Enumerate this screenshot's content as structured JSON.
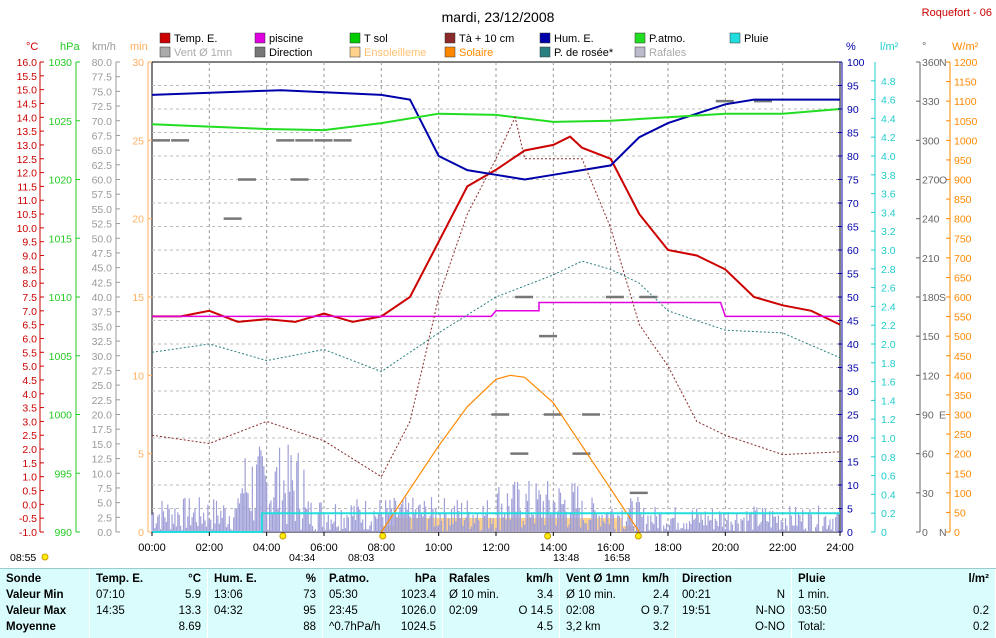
{
  "title": "mardi, 23/12/2008",
  "station": "Roquefort - 06",
  "legend": [
    {
      "label": "Temp. E.",
      "color": "#cc0000"
    },
    {
      "label": "piscine",
      "color": "#e000e0"
    },
    {
      "label": "T sol",
      "color": "#00cc00"
    },
    {
      "label": "Tà + 10 cm",
      "color": "#8b2a2a"
    },
    {
      "label": "Hum. E.",
      "color": "#0000aa"
    },
    {
      "label": "P.atmo.",
      "color": "#22dd22"
    },
    {
      "label": "Pluie",
      "color": "#22dddd"
    },
    {
      "label": "Vent Ø 1mn",
      "color": "#aaaaaa"
    },
    {
      "label": "Direction",
      "color": "#777777"
    },
    {
      "label": "Ensoleilleme",
      "color": "#ffd28c"
    },
    {
      "label": "Solaire",
      "color": "#ff8800"
    },
    {
      "label": "P. de rosée*",
      "color": "#2a8080"
    },
    {
      "label": "Rafales",
      "color": "#bbbbcc"
    }
  ],
  "axes": {
    "temp": {
      "unit": "°C",
      "ticks": [
        "16.0",
        "15.5",
        "15.0",
        "14.5",
        "14.0",
        "13.5",
        "13.0",
        "12.5",
        "12.0",
        "11.5",
        "11.0",
        "10.5",
        "10.0",
        "9.5",
        "9.0",
        "8.5",
        "8.0",
        "7.5",
        "7.0",
        "6.5",
        "6.0",
        "5.5",
        "5.0",
        "4.5",
        "4.0",
        "3.5",
        "3.0",
        "2.5",
        "2.0",
        "1.5",
        "1.0",
        "0.5",
        "0.0",
        "-0.5",
        "-1.0"
      ]
    },
    "pressure": {
      "unit": "hPa",
      "ticks": [
        "1030",
        "1025",
        "1020",
        "1015",
        "1010",
        "1005",
        "1000",
        "995",
        "990"
      ]
    },
    "wind": {
      "unit": "km/h",
      "ticks": [
        "80.0",
        "77.5",
        "75.0",
        "72.5",
        "70.0",
        "67.5",
        "65.0",
        "62.5",
        "60.0",
        "57.5",
        "55.0",
        "52.5",
        "50.0",
        "47.5",
        "45.0",
        "42.5",
        "40.0",
        "37.5",
        "35.0",
        "32.5",
        "30.0",
        "27.5",
        "25.0",
        "22.5",
        "20.0",
        "17.5",
        "15.0",
        "12.5",
        "10.0",
        "7.5",
        "5.0",
        "2.5",
        "0.0"
      ]
    },
    "sun": {
      "unit": "min",
      "ticks": [
        "30",
        "25",
        "20",
        "15",
        "10",
        "5",
        "0"
      ]
    },
    "humidity": {
      "unit": "%",
      "ticks": [
        "100",
        "95",
        "90",
        "85",
        "80",
        "75",
        "70",
        "65",
        "60",
        "55",
        "50",
        "45",
        "40",
        "35",
        "30",
        "25",
        "20",
        "15",
        "10",
        "5",
        "0"
      ]
    },
    "rain": {
      "unit": "l/m²",
      "ticks": [
        "4.8",
        "4.6",
        "4.4",
        "4.2",
        "4.0",
        "3.8",
        "3.6",
        "3.4",
        "3.2",
        "3.0",
        "2.8",
        "2.6",
        "2.4",
        "2.2",
        "2.0",
        "1.8",
        "1.6",
        "1.4",
        "1.2",
        "1.0",
        "0.8",
        "0.6",
        "0.4",
        "0.2",
        "0"
      ]
    },
    "direction": {
      "unit": "°",
      "ticks": [
        "360",
        "330",
        "300",
        "270",
        "240",
        "210",
        "180",
        "150",
        "120",
        "90",
        "60",
        "30",
        "0"
      ],
      "cardinals": {
        "360": "N",
        "270": "O",
        "180": "S",
        "90": "E",
        "0": "N"
      }
    },
    "solar": {
      "unit": "W/m²",
      "ticks": [
        "1200",
        "1150",
        "1100",
        "1050",
        "1000",
        "950",
        "900",
        "850",
        "800",
        "750",
        "700",
        "650",
        "600",
        "550",
        "500",
        "450",
        "400",
        "350",
        "300",
        "250",
        "200",
        "150",
        "100",
        "50",
        "0"
      ]
    },
    "time": {
      "ticks": [
        "00:00",
        "02:00",
        "04:00",
        "06:00",
        "08:00",
        "10:00",
        "12:00",
        "14:00",
        "16:00",
        "18:00",
        "20:00",
        "22:00",
        "24:00"
      ]
    }
  },
  "markers": {
    "sunrise_label": "08:55",
    "moon_left": "04:34",
    "sun_up": "08:03",
    "moon_mid": "13:48",
    "sun_down": "16:58"
  },
  "chart_data": {
    "type": "line",
    "x_range": [
      "00:00",
      "24:00"
    ],
    "series": [
      {
        "name": "Temp. E.",
        "unit": "°C",
        "points": [
          [
            "00:00",
            6.8
          ],
          [
            "01:00",
            6.8
          ],
          [
            "02:00",
            7.0
          ],
          [
            "03:00",
            6.6
          ],
          [
            "04:00",
            6.7
          ],
          [
            "05:00",
            6.6
          ],
          [
            "06:00",
            6.9
          ],
          [
            "07:00",
            6.6
          ],
          [
            "08:00",
            6.8
          ],
          [
            "09:00",
            7.5
          ],
          [
            "10:00",
            9.5
          ],
          [
            "11:00",
            11.5
          ],
          [
            "12:00",
            12.1
          ],
          [
            "13:00",
            12.8
          ],
          [
            "14:00",
            13.0
          ],
          [
            "14:35",
            13.3
          ],
          [
            "15:00",
            12.9
          ],
          [
            "16:00",
            12.5
          ],
          [
            "17:00",
            10.5
          ],
          [
            "18:00",
            9.2
          ],
          [
            "19:00",
            9.0
          ],
          [
            "20:00",
            8.5
          ],
          [
            "21:00",
            7.5
          ],
          [
            "22:00",
            7.2
          ],
          [
            "23:00",
            7.0
          ],
          [
            "24:00",
            6.5
          ]
        ]
      },
      {
        "name": "piscine",
        "unit": "°C",
        "points": [
          [
            "00:00",
            6.8
          ],
          [
            "11:50",
            6.8
          ],
          [
            "12:00",
            7.0
          ],
          [
            "13:30",
            7.0
          ],
          [
            "13:30",
            7.3
          ],
          [
            "19:50",
            7.3
          ],
          [
            "20:00",
            6.8
          ],
          [
            "24:00",
            6.8
          ]
        ]
      },
      {
        "name": "Hum. E.",
        "unit": "%",
        "points": [
          [
            "00:00",
            93
          ],
          [
            "04:30",
            94
          ],
          [
            "08:00",
            93
          ],
          [
            "09:00",
            92
          ],
          [
            "10:00",
            80
          ],
          [
            "11:00",
            77
          ],
          [
            "12:00",
            76
          ],
          [
            "13:00",
            75
          ],
          [
            "14:00",
            76
          ],
          [
            "15:00",
            77
          ],
          [
            "16:00",
            78
          ],
          [
            "17:00",
            84
          ],
          [
            "18:00",
            87
          ],
          [
            "19:00",
            89
          ],
          [
            "20:00",
            91
          ],
          [
            "21:00",
            92
          ],
          [
            "22:00",
            92
          ],
          [
            "24:00",
            92
          ]
        ]
      },
      {
        "name": "P.atmo.",
        "unit": "hPa",
        "points": [
          [
            "00:00",
            1024.7
          ],
          [
            "04:00",
            1024.3
          ],
          [
            "06:00",
            1024.2
          ],
          [
            "08:00",
            1024.8
          ],
          [
            "10:00",
            1025.6
          ],
          [
            "12:00",
            1025.5
          ],
          [
            "14:00",
            1024.9
          ],
          [
            "16:00",
            1025.0
          ],
          [
            "18:00",
            1025.3
          ],
          [
            "20:00",
            1025.6
          ],
          [
            "22:00",
            1025.6
          ],
          [
            "24:00",
            1026.0
          ]
        ]
      },
      {
        "name": "Tà + 10 cm",
        "unit": "°C",
        "points": [
          [
            "00:00",
            2.5
          ],
          [
            "02:00",
            2.2
          ],
          [
            "04:00",
            3.0
          ],
          [
            "06:00",
            2.3
          ],
          [
            "08:00",
            1.0
          ],
          [
            "09:00",
            3.0
          ],
          [
            "10:00",
            7.5
          ],
          [
            "11:00",
            10.5
          ],
          [
            "12:00",
            12.5
          ],
          [
            "12:40",
            14.0
          ],
          [
            "13:00",
            12.5
          ],
          [
            "14:00",
            12.5
          ],
          [
            "15:00",
            12.5
          ],
          [
            "16:00",
            10.0
          ],
          [
            "17:00",
            6.5
          ],
          [
            "18:00",
            5.0
          ],
          [
            "19:00",
            3.0
          ],
          [
            "20:00",
            2.5
          ],
          [
            "22:00",
            1.8
          ],
          [
            "24:00",
            1.9
          ]
        ]
      },
      {
        "name": "P. de rosée*",
        "unit": "°C",
        "points": [
          [
            "00:00",
            5.5
          ],
          [
            "02:00",
            5.8
          ],
          [
            "04:00",
            5.2
          ],
          [
            "06:00",
            5.6
          ],
          [
            "08:00",
            4.8
          ],
          [
            "10:00",
            6.2
          ],
          [
            "12:00",
            7.5
          ],
          [
            "14:00",
            8.3
          ],
          [
            "15:00",
            8.8
          ],
          [
            "16:00",
            8.5
          ],
          [
            "17:00",
            8.0
          ],
          [
            "18:00",
            7.0
          ],
          [
            "20:00",
            6.3
          ],
          [
            "22:00",
            6.2
          ],
          [
            "24:00",
            5.3
          ]
        ]
      },
      {
        "name": "Solaire",
        "unit": "W/m²",
        "points": [
          [
            "08:00",
            0
          ],
          [
            "09:00",
            110
          ],
          [
            "10:00",
            220
          ],
          [
            "11:00",
            320
          ],
          [
            "12:00",
            390
          ],
          [
            "12:30",
            400
          ],
          [
            "13:00",
            395
          ],
          [
            "14:00",
            330
          ],
          [
            "15:00",
            220
          ],
          [
            "16:00",
            110
          ],
          [
            "17:00",
            0
          ]
        ]
      },
      {
        "name": "Pluie",
        "unit": "l/m²",
        "points": [
          [
            "00:00",
            0
          ],
          [
            "03:50",
            0
          ],
          [
            "03:50",
            0.2
          ],
          [
            "24:00",
            0.2
          ]
        ]
      },
      {
        "name": "Vent Ø 1mn",
        "unit": "km/h",
        "summary": {
          "min": 0.0,
          "max": 9.7,
          "mean": 3.2
        }
      },
      {
        "name": "Rafales",
        "unit": "km/h",
        "summary": {
          "min": 3.4,
          "max": 14.5,
          "mean": 4.5
        }
      }
    ]
  },
  "summary": {
    "columns": [
      {
        "header": "Sonde",
        "unit": "",
        "rows": [
          {
            "label": "Valeur Min"
          },
          {
            "label": "Valeur Max"
          },
          {
            "label": "Moyenne"
          }
        ]
      },
      {
        "header": "Temp. E.",
        "unit": "°C",
        "rows": [
          {
            "time": "07:10",
            "value": "5.9"
          },
          {
            "time": "14:35",
            "value": "13.3"
          },
          {
            "time": "",
            "value": "8.69"
          }
        ]
      },
      {
        "header": "Hum. E.",
        "unit": "%",
        "rows": [
          {
            "time": "13:06",
            "value": "73"
          },
          {
            "time": "04:32",
            "value": "95"
          },
          {
            "time": "",
            "value": "88"
          }
        ]
      },
      {
        "header": "P.atmo.",
        "unit": "hPa",
        "rows": [
          {
            "time": "05:30",
            "value": "1023.4"
          },
          {
            "time": "23:45",
            "value": "1026.0"
          },
          {
            "time": "^0.7hPa/h",
            "value": "1024.5"
          }
        ]
      },
      {
        "header": "Rafales",
        "unit": "km/h",
        "rows": [
          {
            "time": "Ø 10 min.",
            "value": "3.4"
          },
          {
            "time": "02:09",
            "value": "O 14.5"
          },
          {
            "time": "",
            "value": "4.5"
          }
        ]
      },
      {
        "header": "Vent Ø 1mn",
        "unit": "km/h",
        "rows": [
          {
            "time": "Ø 10 min.",
            "value": "2.4"
          },
          {
            "time": "02:08",
            "value": "O 9.7"
          },
          {
            "time": "3,2 km",
            "value": "3.2"
          }
        ]
      },
      {
        "header": "Direction",
        "unit": "",
        "rows": [
          {
            "time": "00:21",
            "value": "N"
          },
          {
            "time": "19:51",
            "value": "N-NO"
          },
          {
            "time": "",
            "value": "O-NO"
          }
        ]
      },
      {
        "header": "Pluie",
        "unit": "l/m²",
        "rows": [
          {
            "time": "1 min.",
            "value": ""
          },
          {
            "time": "03:50",
            "value": "0.2"
          },
          {
            "time": "Total:",
            "value": "0.2"
          }
        ]
      }
    ]
  }
}
